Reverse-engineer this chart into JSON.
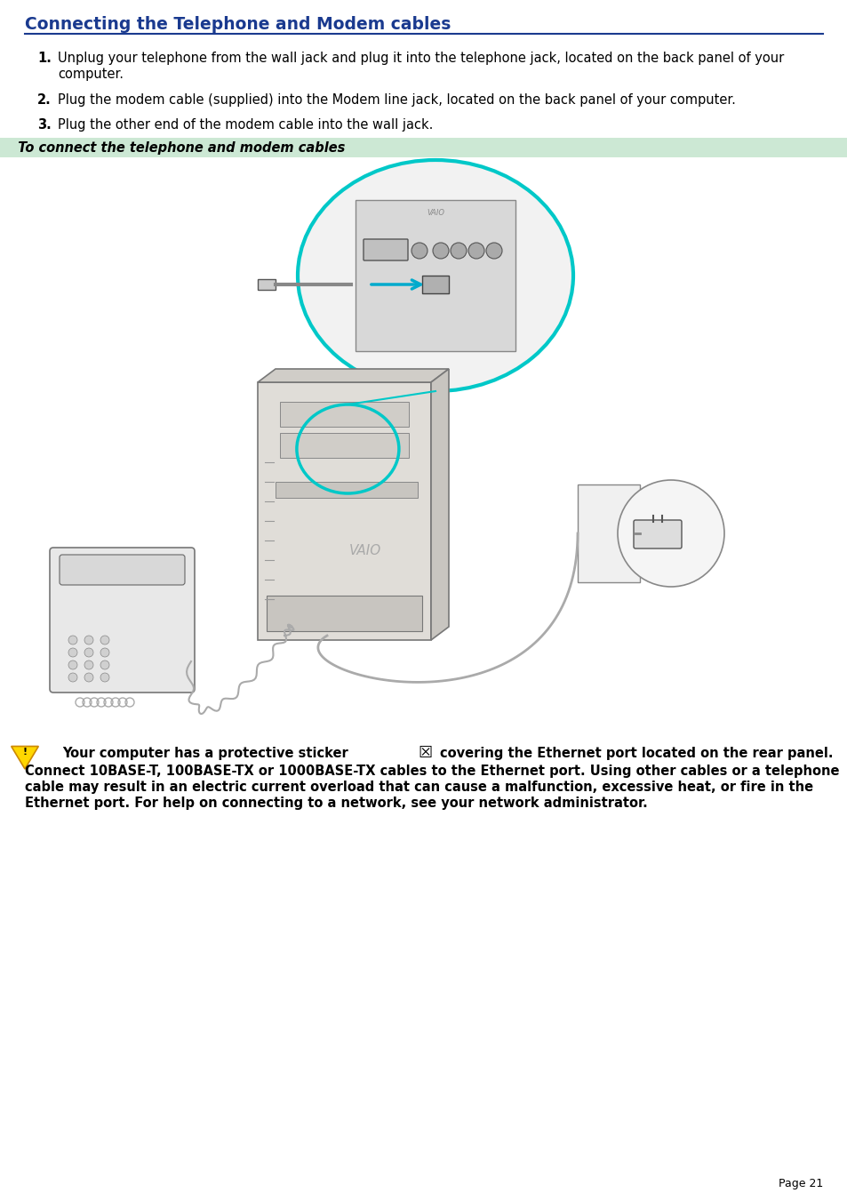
{
  "title": "Connecting the Telephone and Modem cables",
  "title_color": "#1a3a8f",
  "title_fontsize": 13.5,
  "bg_color": "#ffffff",
  "header_line_color": "#1a3a8f",
  "steps": [
    "Unplug your telephone from the wall jack and plug it into the telephone jack, located on the back panel of your\n        computer.",
    "Plug the modem cable (supplied) into the Modem line jack, located on the back panel of your computer.",
    "Plug the other end of the modem cable into the wall jack."
  ],
  "steps_fontsize": 10.5,
  "section_label": "  To connect the telephone and modem cables",
  "section_label_fontsize": 10.5,
  "section_bg_color": "#cce8d4",
  "warning_fontsize": 10.5,
  "page_text": "Page 21",
  "page_fontsize": 9
}
